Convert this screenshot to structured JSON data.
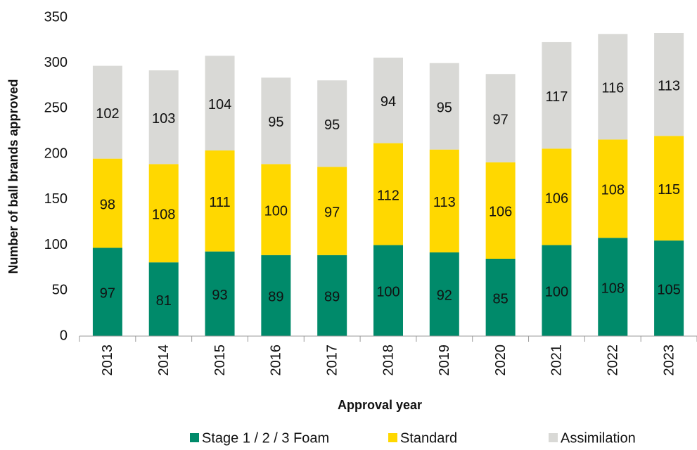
{
  "chart_data": {
    "type": "stacked_bar",
    "x_label": "Approval year",
    "y_label": "Number of ball brands approved",
    "categories": [
      "2013",
      "2014",
      "2015",
      "2016",
      "2017",
      "2018",
      "2019",
      "2020",
      "2021",
      "2022",
      "2023"
    ],
    "series": [
      {
        "name": "Stage 1 / 2 / 3 Foam",
        "color": "#008a6a",
        "values": [
          97,
          81,
          93,
          89,
          89,
          100,
          92,
          85,
          100,
          108,
          105
        ]
      },
      {
        "name": "Standard",
        "color": "#ffd800",
        "values": [
          98,
          108,
          111,
          100,
          97,
          112,
          113,
          106,
          106,
          108,
          115
        ]
      },
      {
        "name": "Assimilation",
        "color": "#d9d9d6",
        "values": [
          102,
          103,
          104,
          95,
          95,
          94,
          95,
          97,
          117,
          116,
          113
        ]
      }
    ],
    "ylim": [
      0,
      350
    ],
    "yticks": [
      0,
      50,
      100,
      150,
      200,
      250,
      300,
      350
    ],
    "grid": false,
    "legend": "bottom"
  }
}
